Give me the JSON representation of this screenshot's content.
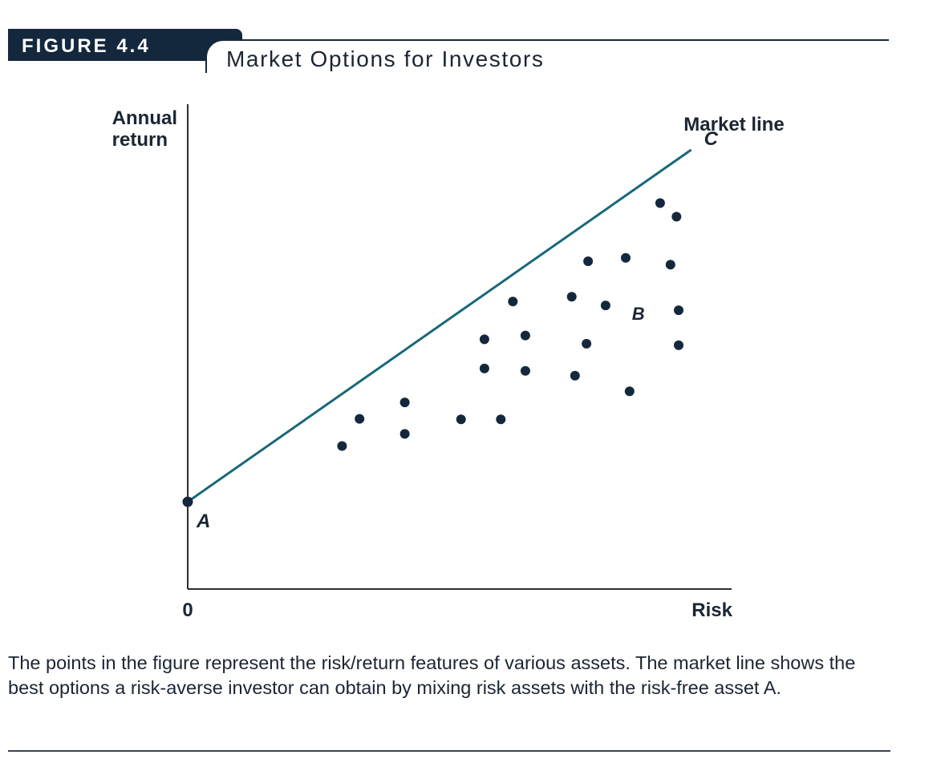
{
  "figure": {
    "label": "FIGURE 4.4",
    "title": "Market Options for Investors",
    "caption": "The points in the figure represent the risk/return features of various assets. The market line shows the best options a risk-averse investor can obtain by mixing risk assets with the risk-free asset A."
  },
  "chart_data": {
    "type": "scatter",
    "title": "Market Options for Investors",
    "xlabel": "Risk",
    "ylabel": "Annual return",
    "x_tick_labels": [
      "0"
    ],
    "xlim": [
      0,
      100
    ],
    "ylim": [
      0,
      100
    ],
    "grid": false,
    "legend": "none",
    "colors": {
      "line": "#17687a",
      "points": "#14283d",
      "axes": "#2a2f36",
      "text": "#1b2533"
    },
    "market_line": {
      "label": "Market line",
      "start": {
        "x": 0,
        "y": 18
      },
      "end": {
        "x": 92.3,
        "y": 90.6
      },
      "start_point_label": "A",
      "end_point_label": "C"
    },
    "annotations": [
      {
        "text": "B",
        "x": 82.6,
        "y": 56.9
      }
    ],
    "points": [
      {
        "x": 28.3,
        "y": 29.5
      },
      {
        "x": 31.5,
        "y": 35.1
      },
      {
        "x": 39.8,
        "y": 32.0
      },
      {
        "x": 39.8,
        "y": 38.5
      },
      {
        "x": 50.1,
        "y": 35.0
      },
      {
        "x": 57.4,
        "y": 35.0
      },
      {
        "x": 54.4,
        "y": 45.5
      },
      {
        "x": 54.4,
        "y": 51.5
      },
      {
        "x": 59.6,
        "y": 59.3
      },
      {
        "x": 61.9,
        "y": 52.3
      },
      {
        "x": 61.9,
        "y": 45.0
      },
      {
        "x": 71.0,
        "y": 44.0
      },
      {
        "x": 70.4,
        "y": 60.3
      },
      {
        "x": 73.1,
        "y": 50.6
      },
      {
        "x": 73.4,
        "y": 67.6
      },
      {
        "x": 76.6,
        "y": 58.5
      },
      {
        "x": 80.3,
        "y": 68.3
      },
      {
        "x": 81.0,
        "y": 40.8
      },
      {
        "x": 86.6,
        "y": 79.6
      },
      {
        "x": 89.6,
        "y": 76.8
      },
      {
        "x": 88.5,
        "y": 66.9
      },
      {
        "x": 90.0,
        "y": 57.5
      },
      {
        "x": 90.0,
        "y": 50.3
      }
    ]
  }
}
